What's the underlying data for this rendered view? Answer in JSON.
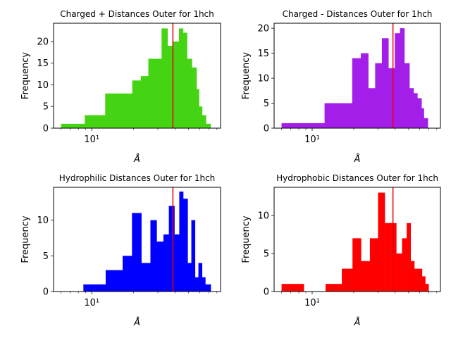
{
  "chart_data": [
    {
      "type": "histogram",
      "title": "Charged + Distances Outer for 1hch",
      "xlabel": "Å",
      "ylabel": "Frequency",
      "xscale": "log",
      "xlim": [
        5.3,
        85
      ],
      "ylim": [
        0,
        24.2
      ],
      "xticks": [
        {
          "value": 10,
          "label": "10¹"
        }
      ],
      "yticks": [
        0,
        5,
        10,
        15,
        20
      ],
      "color": "#44d414",
      "marker": {
        "x": 38.5,
        "color": "#e8000b"
      },
      "bins": [
        {
          "x0": 6.0,
          "x1": 8.9,
          "y": 1
        },
        {
          "x0": 8.9,
          "x1": 12.5,
          "y": 3
        },
        {
          "x0": 12.5,
          "x1": 19.6,
          "y": 8
        },
        {
          "x0": 19.6,
          "x1": 22.6,
          "y": 11
        },
        {
          "x0": 22.6,
          "x1": 25.6,
          "y": 12
        },
        {
          "x0": 25.6,
          "x1": 31.9,
          "y": 16
        },
        {
          "x0": 31.9,
          "x1": 35.2,
          "y": 23
        },
        {
          "x0": 35.2,
          "x1": 38.2,
          "y": 19
        },
        {
          "x0": 38.2,
          "x1": 42.6,
          "y": 20
        },
        {
          "x0": 42.6,
          "x1": 45.6,
          "y": 23
        },
        {
          "x0": 45.6,
          "x1": 48.7,
          "y": 22
        },
        {
          "x0": 48.7,
          "x1": 52.8,
          "y": 16
        },
        {
          "x0": 52.8,
          "x1": 57.0,
          "y": 14
        },
        {
          "x0": 57.0,
          "x1": 59.4,
          "y": 9
        },
        {
          "x0": 59.4,
          "x1": 62.6,
          "y": 5
        },
        {
          "x0": 62.6,
          "x1": 66.7,
          "y": 3
        },
        {
          "x0": 66.7,
          "x1": 72.0,
          "y": 1
        }
      ]
    },
    {
      "type": "histogram",
      "title": "Charged - Distances Outer for 1hch",
      "xlabel": "Å",
      "ylabel": "Frequency",
      "xscale": "log",
      "xlim": [
        5.3,
        85
      ],
      "ylim": [
        0,
        21
      ],
      "xticks": [
        {
          "value": 10,
          "label": "10¹"
        }
      ],
      "yticks": [
        0,
        5,
        10,
        15,
        20
      ],
      "color": "#a31ee8",
      "marker": {
        "x": 38.5,
        "color": "#e8000b"
      },
      "bins": [
        {
          "x0": 6.0,
          "x1": 12.3,
          "y": 1
        },
        {
          "x0": 12.3,
          "x1": 19.5,
          "y": 5
        },
        {
          "x0": 19.5,
          "x1": 22.5,
          "y": 14
        },
        {
          "x0": 22.5,
          "x1": 25.5,
          "y": 15
        },
        {
          "x0": 25.5,
          "x1": 28.6,
          "y": 8
        },
        {
          "x0": 28.6,
          "x1": 32.0,
          "y": 13
        },
        {
          "x0": 32.0,
          "x1": 35.7,
          "y": 18
        },
        {
          "x0": 35.7,
          "x1": 39.7,
          "y": 12
        },
        {
          "x0": 39.7,
          "x1": 43.3,
          "y": 19
        },
        {
          "x0": 43.3,
          "x1": 46.6,
          "y": 20
        },
        {
          "x0": 46.6,
          "x1": 50.7,
          "y": 13
        },
        {
          "x0": 50.7,
          "x1": 54.3,
          "y": 8
        },
        {
          "x0": 54.3,
          "x1": 57.9,
          "y": 7
        },
        {
          "x0": 57.9,
          "x1": 62.0,
          "y": 6
        },
        {
          "x0": 62.0,
          "x1": 64.5,
          "y": 4
        },
        {
          "x0": 64.5,
          "x1": 68.9,
          "y": 2
        }
      ]
    },
    {
      "type": "histogram",
      "title": "Hydrophilic Distances Outer for 1hch",
      "xlabel": "Å",
      "ylabel": "Frequency",
      "xscale": "log",
      "xlim": [
        5.3,
        85
      ],
      "ylim": [
        0,
        14.6
      ],
      "xticks": [
        {
          "value": 10,
          "label": "10¹"
        }
      ],
      "yticks": [
        0,
        5,
        10
      ],
      "color": "#0000ff",
      "marker": {
        "x": 38.5,
        "color": "#e8000b"
      },
      "bins": [
        {
          "x0": 8.7,
          "x1": 12.6,
          "y": 1
        },
        {
          "x0": 12.6,
          "x1": 16.7,
          "y": 3
        },
        {
          "x0": 16.7,
          "x1": 19.5,
          "y": 5
        },
        {
          "x0": 19.5,
          "x1": 22.8,
          "y": 11
        },
        {
          "x0": 22.8,
          "x1": 26.5,
          "y": 4
        },
        {
          "x0": 26.5,
          "x1": 29.4,
          "y": 10
        },
        {
          "x0": 29.4,
          "x1": 32.9,
          "y": 7
        },
        {
          "x0": 32.9,
          "x1": 36.0,
          "y": 8
        },
        {
          "x0": 36.0,
          "x1": 39.5,
          "y": 12
        },
        {
          "x0": 39.5,
          "x1": 42.8,
          "y": 8
        },
        {
          "x0": 42.8,
          "x1": 45.7,
          "y": 14
        },
        {
          "x0": 45.7,
          "x1": 49.2,
          "y": 13
        },
        {
          "x0": 49.2,
          "x1": 52.3,
          "y": 4
        },
        {
          "x0": 52.3,
          "x1": 55.6,
          "y": 10
        },
        {
          "x0": 55.6,
          "x1": 58.8,
          "y": 2
        },
        {
          "x0": 58.8,
          "x1": 62.5,
          "y": 4
        },
        {
          "x0": 62.5,
          "x1": 66.0,
          "y": 2
        },
        {
          "x0": 66.0,
          "x1": 72.2,
          "y": 1
        }
      ]
    },
    {
      "type": "histogram",
      "title": "Hydrophobic Distances Outer for 1hch",
      "xlabel": "Å",
      "ylabel": "Frequency",
      "xscale": "log",
      "xlim": [
        5.3,
        85
      ],
      "ylim": [
        0,
        13.7
      ],
      "xticks": [
        {
          "value": 10,
          "label": "10¹"
        }
      ],
      "yticks": [
        0,
        5,
        10
      ],
      "color": "#ff0000",
      "marker": {
        "x": 38.5,
        "color": "#e8000b"
      },
      "bins": [
        {
          "x0": 6.0,
          "x1": 8.7,
          "y": 1
        },
        {
          "x0": 12.5,
          "x1": 16.4,
          "y": 1
        },
        {
          "x0": 16.4,
          "x1": 19.6,
          "y": 3
        },
        {
          "x0": 19.6,
          "x1": 22.6,
          "y": 7
        },
        {
          "x0": 22.6,
          "x1": 26.2,
          "y": 4
        },
        {
          "x0": 26.2,
          "x1": 30.0,
          "y": 7
        },
        {
          "x0": 30.0,
          "x1": 33.6,
          "y": 13
        },
        {
          "x0": 33.6,
          "x1": 37.6,
          "y": 9
        },
        {
          "x0": 37.6,
          "x1": 40.7,
          "y": 9
        },
        {
          "x0": 40.7,
          "x1": 44.8,
          "y": 5
        },
        {
          "x0": 44.8,
          "x1": 48.4,
          "y": 7
        },
        {
          "x0": 48.4,
          "x1": 51.7,
          "y": 9
        },
        {
          "x0": 51.7,
          "x1": 55.0,
          "y": 4
        },
        {
          "x0": 55.0,
          "x1": 62.5,
          "y": 3
        },
        {
          "x0": 62.5,
          "x1": 66.0,
          "y": 2
        },
        {
          "x0": 66.0,
          "x1": 69.8,
          "y": 1
        }
      ]
    }
  ]
}
